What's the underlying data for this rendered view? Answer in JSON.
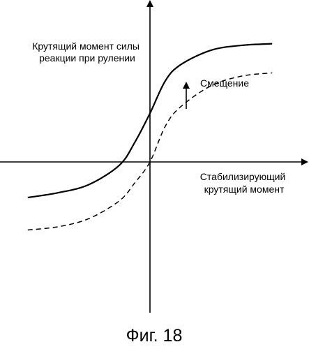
{
  "chart_data": {
    "type": "line",
    "title": "",
    "ylabel": [
      "Крутящий момент силы",
      "реакции при рулении"
    ],
    "xlabel": [
      "Стабилизирующий",
      "крутящий момент"
    ],
    "annotation": "Смещение",
    "caption": "Фиг. 18",
    "xlim": [
      -1,
      1
    ],
    "ylim": [
      -1,
      1
    ],
    "grid": false,
    "series": [
      {
        "style": "solid",
        "x": [
          -0.8,
          -0.6,
          -0.4,
          -0.2,
          -0.1,
          0,
          0.1,
          0.2,
          0.4,
          0.6,
          0.8
        ],
        "values": [
          -0.22,
          -0.19,
          -0.14,
          -0.02,
          0.12,
          0.3,
          0.5,
          0.6,
          0.69,
          0.72,
          0.73
        ]
      },
      {
        "style": "dashed",
        "x": [
          -0.8,
          -0.6,
          -0.4,
          -0.2,
          -0.1,
          0,
          0.1,
          0.2,
          0.4,
          0.6,
          0.8
        ],
        "values": [
          -0.42,
          -0.4,
          -0.35,
          -0.24,
          -0.13,
          0,
          0.22,
          0.34,
          0.47,
          0.53,
          0.55
        ]
      }
    ],
    "colors": {
      "line": "#000000",
      "background": "#ffffff"
    }
  }
}
